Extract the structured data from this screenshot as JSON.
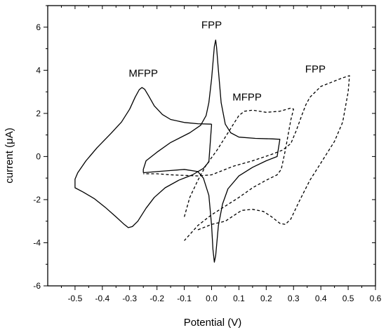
{
  "chart_data": {
    "type": "line",
    "xlabel": "Potential (V)",
    "ylabel": "current (μA)",
    "xlim": [
      -0.6,
      0.6
    ],
    "ylim": [
      -6,
      7
    ],
    "xticks": [
      "-0.5",
      "-0.4",
      "-0.3",
      "-0.2",
      "-0.1",
      "0.0",
      "0.1",
      "0.2",
      "0.3",
      "0.4",
      "0.5",
      "0.6"
    ],
    "yticks": [
      "-6",
      "-4",
      "-2",
      "0",
      "2",
      "4",
      "6"
    ],
    "grid": false,
    "annotations": [
      {
        "text": "MFPP",
        "x": -0.25,
        "y": 3.7
      },
      {
        "text": "FPP",
        "x": 0.0,
        "y": 5.95
      },
      {
        "text": "MFPP",
        "x": 0.13,
        "y": 2.6
      },
      {
        "text": "FPP",
        "x": 0.38,
        "y": 3.9
      }
    ],
    "series": [
      {
        "style": "solid",
        "points": [
          [
            0.0,
            1.5
          ],
          [
            -0.05,
            1.52
          ],
          [
            -0.1,
            1.58
          ],
          [
            -0.15,
            1.72
          ],
          [
            -0.18,
            1.95
          ],
          [
            -0.21,
            2.35
          ],
          [
            -0.23,
            2.8
          ],
          [
            -0.245,
            3.12
          ],
          [
            -0.255,
            3.2
          ],
          [
            -0.265,
            3.1
          ],
          [
            -0.28,
            2.75
          ],
          [
            -0.3,
            2.2
          ],
          [
            -0.33,
            1.6
          ],
          [
            -0.37,
            1.05
          ],
          [
            -0.42,
            0.4
          ],
          [
            -0.46,
            -0.2
          ],
          [
            -0.49,
            -0.75
          ],
          [
            -0.5,
            -1.05
          ],
          [
            -0.5,
            -1.45
          ],
          [
            -0.47,
            -1.65
          ],
          [
            -0.43,
            -1.95
          ],
          [
            -0.39,
            -2.35
          ],
          [
            -0.35,
            -2.8
          ],
          [
            -0.32,
            -3.15
          ],
          [
            -0.305,
            -3.3
          ],
          [
            -0.29,
            -3.25
          ],
          [
            -0.27,
            -3.0
          ],
          [
            -0.24,
            -2.4
          ],
          [
            -0.21,
            -1.9
          ],
          [
            -0.17,
            -1.45
          ],
          [
            -0.12,
            -1.1
          ],
          [
            -0.07,
            -0.85
          ],
          [
            -0.03,
            -0.55
          ],
          [
            -0.01,
            -0.25
          ],
          [
            0.0,
            1.5
          ]
        ]
      },
      {
        "style": "solid",
        "points": [
          [
            -0.25,
            -0.75
          ],
          [
            -0.2,
            -0.7
          ],
          [
            -0.15,
            -0.65
          ],
          [
            -0.1,
            -0.6
          ],
          [
            -0.05,
            -0.7
          ],
          [
            -0.03,
            -1.0
          ],
          [
            -0.01,
            -1.8
          ],
          [
            0.0,
            -3.2
          ],
          [
            0.005,
            -4.3
          ],
          [
            0.01,
            -4.9
          ],
          [
            0.015,
            -4.6
          ],
          [
            0.025,
            -3.2
          ],
          [
            0.04,
            -2.2
          ],
          [
            0.06,
            -1.5
          ],
          [
            0.1,
            -0.9
          ],
          [
            0.15,
            -0.5
          ],
          [
            0.2,
            -0.2
          ],
          [
            0.24,
            0.0
          ],
          [
            0.25,
            0.8
          ],
          [
            0.22,
            0.82
          ],
          [
            0.16,
            0.84
          ],
          [
            0.1,
            0.9
          ],
          [
            0.07,
            1.1
          ],
          [
            0.05,
            1.5
          ],
          [
            0.035,
            2.5
          ],
          [
            0.025,
            4.0
          ],
          [
            0.018,
            5.1
          ],
          [
            0.015,
            5.4
          ],
          [
            0.01,
            5.1
          ],
          [
            0.0,
            3.6
          ],
          [
            -0.01,
            2.5
          ],
          [
            -0.02,
            1.9
          ],
          [
            -0.04,
            1.45
          ],
          [
            -0.08,
            1.1
          ],
          [
            -0.15,
            0.65
          ],
          [
            -0.2,
            0.2
          ],
          [
            -0.24,
            -0.2
          ],
          [
            -0.25,
            -0.6
          ],
          [
            -0.25,
            -0.75
          ]
        ]
      },
      {
        "style": "dashed",
        "points": [
          [
            -0.1,
            -2.8
          ],
          [
            -0.08,
            -1.9
          ],
          [
            -0.05,
            -1.1
          ],
          [
            -0.02,
            -0.4
          ],
          [
            0.02,
            0.3
          ],
          [
            0.05,
            0.9
          ],
          [
            0.08,
            1.5
          ],
          [
            0.1,
            1.9
          ],
          [
            0.12,
            2.1
          ],
          [
            0.15,
            2.15
          ],
          [
            0.2,
            2.05
          ],
          [
            0.25,
            2.1
          ],
          [
            0.29,
            2.25
          ],
          [
            0.3,
            2.2
          ],
          [
            0.29,
            1.7
          ],
          [
            0.28,
            1.0
          ],
          [
            0.27,
            0.3
          ],
          [
            0.26,
            -0.3
          ],
          [
            0.255,
            -0.6
          ],
          [
            0.24,
            -0.85
          ],
          [
            0.2,
            -1.1
          ],
          [
            0.15,
            -1.45
          ],
          [
            0.1,
            -1.9
          ],
          [
            0.05,
            -2.3
          ],
          [
            0.0,
            -2.7
          ],
          [
            -0.05,
            -3.2
          ],
          [
            -0.1,
            -3.9
          ]
        ]
      },
      {
        "style": "dashed",
        "points": [
          [
            -0.05,
            -3.4
          ],
          [
            0.0,
            -3.15
          ],
          [
            0.05,
            -3.0
          ],
          [
            0.08,
            -2.75
          ],
          [
            0.11,
            -2.5
          ],
          [
            0.15,
            -2.45
          ],
          [
            0.19,
            -2.55
          ],
          [
            0.22,
            -2.8
          ],
          [
            0.25,
            -3.1
          ],
          [
            0.27,
            -3.15
          ],
          [
            0.29,
            -2.9
          ],
          [
            0.32,
            -2.1
          ],
          [
            0.36,
            -1.1
          ],
          [
            0.4,
            -0.3
          ],
          [
            0.45,
            0.7
          ],
          [
            0.48,
            1.6
          ],
          [
            0.5,
            3.0
          ],
          [
            0.505,
            3.75
          ],
          [
            0.48,
            3.65
          ],
          [
            0.44,
            3.45
          ],
          [
            0.4,
            3.25
          ],
          [
            0.38,
            3.0
          ],
          [
            0.36,
            2.75
          ],
          [
            0.345,
            2.4
          ],
          [
            0.33,
            1.9
          ],
          [
            0.31,
            1.2
          ],
          [
            0.29,
            0.6
          ],
          [
            0.26,
            0.3
          ],
          [
            0.22,
            0.1
          ],
          [
            0.15,
            -0.2
          ],
          [
            0.08,
            -0.45
          ],
          [
            0.03,
            -0.7
          ],
          [
            0.0,
            -0.85
          ],
          [
            -0.05,
            -0.9
          ],
          [
            -0.15,
            -0.85
          ],
          [
            -0.2,
            -0.8
          ],
          [
            -0.25,
            -0.8
          ]
        ]
      }
    ]
  }
}
